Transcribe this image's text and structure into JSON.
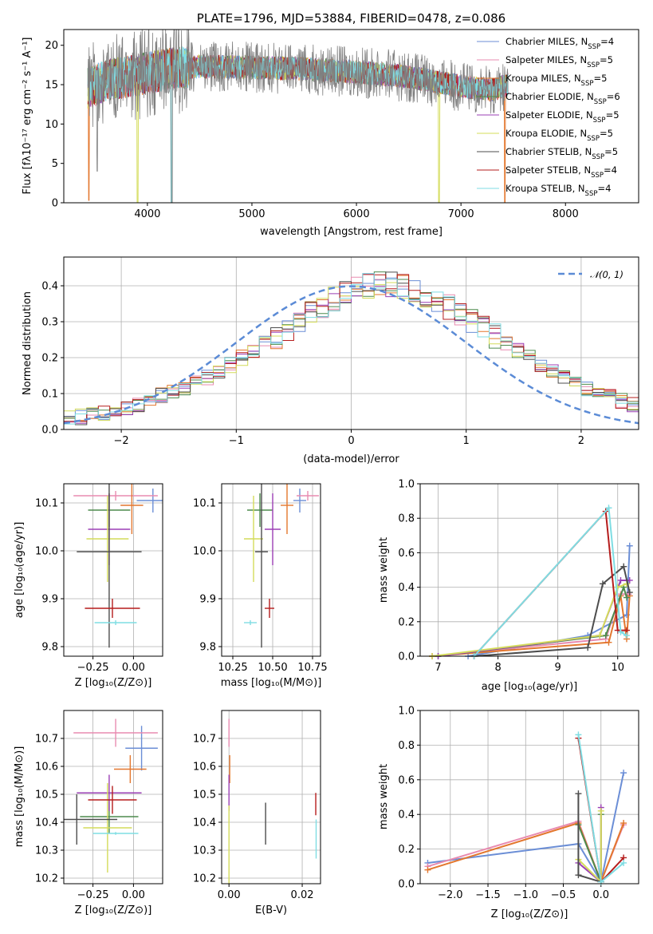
{
  "colors": {
    "Chabrier MILES": "#6b8ed6",
    "Salpeter MILES": "#e88bb0",
    "Kroupa MILES": "#e3772e",
    "Chabrier ELODIE": "#4d8a4d",
    "Salpeter ELODIE": "#9b3fb5",
    "Kroupa ELODIE": "#d4dc5a",
    "Chabrier STELIB": "#4d4d4d",
    "Salpeter STELIB": "#b51c1c",
    "Kroupa STELIB": "#7fdde3",
    "normal_curve": "#5b8bd6",
    "grid": "#b0b0b0"
  },
  "chart_data": [
    {
      "id": "spectrum",
      "type": "line",
      "title": "PLATE=1796, MJD=53884, FIBERID=0478, z=0.086",
      "xlabel": "wavelength [Angstrom, rest frame]",
      "ylabel": "Flux [fλ10⁻¹⁷ erg cm⁻² s⁻¹ A⁻¹]",
      "xlim": [
        3200,
        8700
      ],
      "ylim": [
        0,
        22
      ],
      "xticks": [
        "4000",
        "5000",
        "6000",
        "7000",
        "8000"
      ],
      "yticks": [
        "0",
        "5",
        "10",
        "15",
        "20"
      ],
      "grid": false,
      "legend_position": "upper right",
      "data_note": "observed spectrum (grey) overplotted with nine model fits",
      "legend": [
        {
          "label": "Chabrier MILES, N",
          "sub": "SSP",
          "tail": "=4"
        },
        {
          "label": "Salpeter MILES, N",
          "sub": "SSP",
          "tail": "=5"
        },
        {
          "label": "Kroupa MILES, N",
          "sub": "SSP",
          "tail": "=5"
        },
        {
          "label": "Chabrier ELODIE, N",
          "sub": "SSP",
          "tail": "=6"
        },
        {
          "label": "Salpeter ELODIE, N",
          "sub": "SSP",
          "tail": "=5"
        },
        {
          "label": "Kroupa ELODIE, N",
          "sub": "SSP",
          "tail": "=5"
        },
        {
          "label": "Chabrier STELIB, N",
          "sub": "SSP",
          "tail": "=5"
        },
        {
          "label": "Salpeter STELIB, N",
          "sub": "SSP",
          "tail": "=4"
        },
        {
          "label": "Kroupa STELIB, N",
          "sub": "SSP",
          "tail": "=4"
        }
      ],
      "continuum": {
        "x": [
          3430,
          3600,
          3800,
          4000,
          4200,
          4500,
          5000,
          5500,
          6000,
          6500,
          7000,
          7300,
          7450
        ],
        "y": [
          14.5,
          15.5,
          16.0,
          16.5,
          17.0,
          17.3,
          17.2,
          17.0,
          16.6,
          16.0,
          14.8,
          14.3,
          15.0
        ]
      }
    },
    {
      "id": "residuals",
      "type": "step",
      "xlabel": "(data-model)/error",
      "ylabel": "Normed distribution",
      "xlim": [
        -2.5,
        2.5
      ],
      "ylim": [
        0,
        0.48
      ],
      "xticks": [
        "−2",
        "−1",
        "0",
        "1",
        "2"
      ],
      "yticks": [
        "0.0",
        "0.1",
        "0.2",
        "0.3",
        "0.4"
      ],
      "grid": true,
      "legend_position": "upper right",
      "curve_label": "𝒩(0, 1)",
      "bins": {
        "start": -2.5,
        "width": 0.1
      },
      "base_values": [
        0.03,
        0.035,
        0.04,
        0.045,
        0.05,
        0.06,
        0.07,
        0.085,
        0.095,
        0.105,
        0.115,
        0.13,
        0.145,
        0.165,
        0.18,
        0.2,
        0.22,
        0.24,
        0.26,
        0.28,
        0.3,
        0.325,
        0.345,
        0.365,
        0.385,
        0.39,
        0.4,
        0.405,
        0.405,
        0.4,
        0.39,
        0.375,
        0.36,
        0.34,
        0.32,
        0.3,
        0.28,
        0.26,
        0.24,
        0.22,
        0.2,
        0.18,
        0.16,
        0.145,
        0.13,
        0.115,
        0.1,
        0.09,
        0.08,
        0.07,
        0.06
      ]
    },
    {
      "id": "age-vs-Z",
      "type": "errorbar",
      "xlabel": "Z [log₁₀(Z/Z⊙)]",
      "ylabel": "age  [log₁₀(age/yr)]",
      "xlim": [
        -0.43,
        0.18
      ],
      "ylim": [
        9.78,
        10.14
      ],
      "xticks": [
        {
          "v": -0.25,
          "t": "−0.25"
        },
        {
          "v": 0.0,
          "t": "0.00"
        }
      ],
      "yticks": [
        {
          "v": 9.8,
          "t": "9.8"
        },
        {
          "v": 9.9,
          "t": "9.9"
        },
        {
          "v": 10.0,
          "t": "10.0"
        },
        {
          "v": 10.1,
          "t": "10.1"
        }
      ],
      "points": [
        {
          "s": "Chabrier MILES",
          "x": 0.12,
          "y": 10.105,
          "xerr": 0.1,
          "yerr": 0.025
        },
        {
          "s": "Salpeter MILES",
          "x": -0.11,
          "y": 10.115,
          "xerr": 0.26,
          "yerr": 0.01
        },
        {
          "s": "Kroupa MILES",
          "x": -0.01,
          "y": 10.095,
          "xerr": 0.07,
          "yerr": 0.06
        },
        {
          "s": "Chabrier ELODIE",
          "x": -0.15,
          "y": 10.085,
          "xerr": 0.13,
          "yerr": 0.035
        },
        {
          "s": "Salpeter ELODIE",
          "x": -0.15,
          "y": 10.045,
          "xerr": 0.13,
          "yerr": 0.075
        },
        {
          "s": "Kroupa ELODIE",
          "x": -0.16,
          "y": 10.025,
          "xerr": 0.13,
          "yerr": 0.09
        },
        {
          "s": "Chabrier STELIB",
          "x": -0.15,
          "y": 9.998,
          "xerr": 0.2,
          "yerr": 0.2
        },
        {
          "s": "Salpeter STELIB",
          "x": -0.13,
          "y": 9.88,
          "xerr": 0.17,
          "yerr": 0.02
        },
        {
          "s": "Kroupa STELIB",
          "x": -0.11,
          "y": 9.85,
          "xerr": 0.13,
          "yerr": 0.005
        }
      ]
    },
    {
      "id": "age-vs-mass",
      "type": "errorbar",
      "xlabel": "mass [log₁₀(M/M⊙)]",
      "ylabel": "",
      "xlim": [
        10.18,
        10.8
      ],
      "ylim": [
        9.78,
        10.14
      ],
      "xticks": [
        {
          "v": 10.25,
          "t": "10.25"
        },
        {
          "v": 10.5,
          "t": "10.50"
        },
        {
          "v": 10.75,
          "t": "10.75"
        }
      ],
      "yticks": [
        {
          "v": 9.8,
          "t": "9.8"
        },
        {
          "v": 9.9,
          "t": "9.9"
        },
        {
          "v": 10.0,
          "t": "10.0"
        },
        {
          "v": 10.1,
          "t": "10.1"
        }
      ],
      "points": [
        {
          "s": "Chabrier MILES",
          "x": 10.67,
          "y": 10.105,
          "xerr": 0.04,
          "yerr": 0.025
        },
        {
          "s": "Salpeter MILES",
          "x": 10.72,
          "y": 10.115,
          "xerr": 0.07,
          "yerr": 0.01
        },
        {
          "s": "Kroupa MILES",
          "x": 10.59,
          "y": 10.095,
          "xerr": 0.04,
          "yerr": 0.06
        },
        {
          "s": "Chabrier ELODIE",
          "x": 10.42,
          "y": 10.085,
          "xerr": 0.08,
          "yerr": 0.035
        },
        {
          "s": "Salpeter ELODIE",
          "x": 10.5,
          "y": 10.045,
          "xerr": 0.05,
          "yerr": 0.075
        },
        {
          "s": "Kroupa ELODIE",
          "x": 10.38,
          "y": 10.025,
          "xerr": 0.06,
          "yerr": 0.09
        },
        {
          "s": "Chabrier STELIB",
          "x": 10.43,
          "y": 9.998,
          "xerr": 0.04,
          "yerr": 0.2
        },
        {
          "s": "Salpeter STELIB",
          "x": 10.48,
          "y": 9.88,
          "xerr": 0.03,
          "yerr": 0.02
        },
        {
          "s": "Kroupa STELIB",
          "x": 10.36,
          "y": 9.85,
          "xerr": 0.04,
          "yerr": 0.005
        }
      ]
    },
    {
      "id": "weight-vs-age",
      "type": "line",
      "xlabel": "age  [log₁₀(age/yr)]",
      "ylabel": "mass weight",
      "xlim": [
        6.7,
        10.35
      ],
      "ylim": [
        0,
        1.0
      ],
      "xticks": [
        {
          "v": 7,
          "t": "7"
        },
        {
          "v": 8,
          "t": "8"
        },
        {
          "v": 9,
          "t": "9"
        },
        {
          "v": 10,
          "t": "10"
        }
      ],
      "yticks": [
        {
          "v": 0,
          "t": "0.0"
        },
        {
          "v": 0.2,
          "t": "0.2"
        },
        {
          "v": 0.4,
          "t": "0.4"
        },
        {
          "v": 0.6,
          "t": "0.6"
        },
        {
          "v": 0.8,
          "t": "0.8"
        },
        {
          "v": 1.0,
          "t": "1.0"
        }
      ],
      "grid": true,
      "series": [
        {
          "s": "Chabrier MILES",
          "x": [
            7.5,
            9.5,
            10.15,
            10.2
          ],
          "y": [
            0.0,
            0.12,
            0.24,
            0.64
          ]
        },
        {
          "s": "Salpeter MILES",
          "x": [
            6.9,
            9.8,
            10.05,
            10.18
          ],
          "y": [
            0.0,
            0.1,
            0.36,
            0.36
          ]
        },
        {
          "s": "Kroupa MILES",
          "x": [
            6.9,
            9.85,
            10.05,
            10.15,
            10.2
          ],
          "y": [
            0.0,
            0.08,
            0.35,
            0.1,
            0.35
          ]
        },
        {
          "s": "Chabrier ELODIE",
          "x": [
            7.0,
            9.8,
            10.1,
            10.15
          ],
          "y": [
            0.0,
            0.12,
            0.4,
            0.34
          ]
        },
        {
          "s": "Salpeter ELODIE",
          "x": [
            7.0,
            9.7,
            10.05,
            10.2
          ],
          "y": [
            0.0,
            0.12,
            0.44,
            0.44
          ]
        },
        {
          "s": "Kroupa ELODIE",
          "x": [
            6.9,
            9.7,
            10.0,
            10.15
          ],
          "y": [
            0.0,
            0.12,
            0.4,
            0.42
          ]
        },
        {
          "s": "Chabrier STELIB",
          "x": [
            7.6,
            9.5,
            9.75,
            10.1,
            10.2
          ],
          "y": [
            0.0,
            0.05,
            0.42,
            0.52,
            0.37
          ]
        },
        {
          "s": "Salpeter STELIB",
          "x": [
            7.6,
            9.8,
            10.0,
            10.15
          ],
          "y": [
            0.0,
            0.84,
            0.15,
            0.15
          ]
        },
        {
          "s": "Kroupa STELIB",
          "x": [
            7.6,
            9.85,
            10.05,
            10.15
          ],
          "y": [
            0.0,
            0.86,
            0.14,
            0.12
          ]
        }
      ]
    },
    {
      "id": "mass-vs-Z",
      "type": "errorbar",
      "xlabel": "Z [log₁₀(Z/Z⊙)]",
      "ylabel": "mass [log₁₀(M/M⊙)]",
      "xlim": [
        -0.43,
        0.18
      ],
      "ylim": [
        10.18,
        10.8
      ],
      "xticks": [
        {
          "v": -0.25,
          "t": "−0.25"
        },
        {
          "v": 0.0,
          "t": "0.00"
        }
      ],
      "yticks": [
        {
          "v": 10.2,
          "t": "10.2"
        },
        {
          "v": 10.3,
          "t": "10.3"
        },
        {
          "v": 10.4,
          "t": "10.4"
        },
        {
          "v": 10.5,
          "t": "10.5"
        },
        {
          "v": 10.6,
          "t": "10.6"
        },
        {
          "v": 10.7,
          "t": "10.7"
        }
      ],
      "points": [
        {
          "s": "Chabrier MILES",
          "x": 0.05,
          "y": 10.665,
          "xerr": 0.1,
          "yerr": 0.08
        },
        {
          "s": "Salpeter MILES",
          "x": -0.11,
          "y": 10.72,
          "xerr": 0.26,
          "yerr": 0.05
        },
        {
          "s": "Kroupa MILES",
          "x": -0.02,
          "y": 10.59,
          "xerr": 0.1,
          "yerr": 0.05
        },
        {
          "s": "Chabrier ELODIE",
          "x": -0.15,
          "y": 10.42,
          "xerr": 0.18,
          "yerr": 0.06
        },
        {
          "s": "Salpeter ELODIE",
          "x": -0.15,
          "y": 10.505,
          "xerr": 0.2,
          "yerr": 0.065
        },
        {
          "s": "Kroupa ELODIE",
          "x": -0.16,
          "y": 10.38,
          "xerr": 0.15,
          "yerr": 0.16
        },
        {
          "s": "Chabrier STELIB",
          "x": -0.35,
          "y": 10.41,
          "xerr": 0.25,
          "yerr": 0.09
        },
        {
          "s": "Salpeter STELIB",
          "x": -0.13,
          "y": 10.48,
          "xerr": 0.15,
          "yerr": 0.05
        },
        {
          "s": "Kroupa STELIB",
          "x": -0.11,
          "y": 10.36,
          "xerr": 0.14,
          "yerr": 0.005
        }
      ]
    },
    {
      "id": "mass-vs-EBV",
      "type": "errorbar",
      "xlabel": "E(B-V)",
      "ylabel": "",
      "xlim": [
        -0.002,
        0.025
      ],
      "ylim": [
        10.18,
        10.8
      ],
      "xticks": [
        {
          "v": 0.0,
          "t": "0.00"
        },
        {
          "v": 0.02,
          "t": "0.02"
        }
      ],
      "yticks": [
        {
          "v": 10.2,
          "t": "10.2"
        },
        {
          "v": 10.3,
          "t": "10.3"
        },
        {
          "v": 10.4,
          "t": "10.4"
        },
        {
          "v": 10.5,
          "t": "10.5"
        },
        {
          "v": 10.6,
          "t": "10.6"
        },
        {
          "v": 10.7,
          "t": "10.7"
        }
      ],
      "points": [
        {
          "s": "Salpeter MILES",
          "x": 0.0,
          "y": 10.72,
          "xerr": 0,
          "yerr": 0.05
        },
        {
          "s": "Kroupa MILES",
          "x": 0.0002,
          "y": 10.59,
          "xerr": 0,
          "yerr": 0.05
        },
        {
          "s": "Salpeter ELODIE",
          "x": 0.0,
          "y": 10.505,
          "xerr": 0,
          "yerr": 0.065
        },
        {
          "s": "Kroupa ELODIE",
          "x": 0.0,
          "y": 10.3,
          "xerr": 0,
          "yerr": 0.16
        },
        {
          "s": "Chabrier STELIB",
          "x": 0.01,
          "y": 10.395,
          "xerr": 0,
          "yerr": 0.075
        },
        {
          "s": "Salpeter STELIB",
          "x": 0.0237,
          "y": 10.465,
          "xerr": 0,
          "yerr": 0.04
        },
        {
          "s": "Kroupa STELIB",
          "x": 0.0238,
          "y": 10.34,
          "xerr": 0,
          "yerr": 0.07
        }
      ]
    },
    {
      "id": "weight-vs-Z",
      "type": "line",
      "xlabel": "Z [log₁₀(Z/Z⊙)]",
      "ylabel": "mass weight",
      "xlim": [
        -2.4,
        0.5
      ],
      "ylim": [
        0,
        1.0
      ],
      "xticks": [
        {
          "v": -2.0,
          "t": "−2.0"
        },
        {
          "v": -1.5,
          "t": "−1.5"
        },
        {
          "v": -1.0,
          "t": "−1.0"
        },
        {
          "v": -0.5,
          "t": "−0.5"
        },
        {
          "v": 0.0,
          "t": "0.0"
        }
      ],
      "yticks": [
        {
          "v": 0,
          "t": "0.0"
        },
        {
          "v": 0.2,
          "t": "0.2"
        },
        {
          "v": 0.4,
          "t": "0.4"
        },
        {
          "v": 0.6,
          "t": "0.6"
        },
        {
          "v": 0.8,
          "t": "0.8"
        },
        {
          "v": 1.0,
          "t": "1.0"
        }
      ],
      "grid": true,
      "series": [
        {
          "s": "Chabrier MILES",
          "x": [
            -2.3,
            -0.3,
            0.0,
            0.3
          ],
          "y": [
            0.12,
            0.23,
            0.01,
            0.64
          ]
        },
        {
          "s": "Salpeter MILES",
          "x": [
            -2.3,
            -0.3,
            0.0,
            0.3
          ],
          "y": [
            0.1,
            0.36,
            0.01,
            0.34
          ]
        },
        {
          "s": "Kroupa MILES",
          "x": [
            -2.3,
            -0.3,
            0.0,
            0.3
          ],
          "y": [
            0.08,
            0.35,
            0.01,
            0.35
          ]
        },
        {
          "s": "Chabrier ELODIE",
          "x": [
            -0.3,
            0.0,
            0.0
          ],
          "y": [
            0.34,
            0.01,
            0.4
          ]
        },
        {
          "s": "Salpeter ELODIE",
          "x": [
            -0.3,
            0.0,
            0.0
          ],
          "y": [
            0.12,
            0.01,
            0.44
          ]
        },
        {
          "s": "Kroupa ELODIE",
          "x": [
            -0.3,
            0.0,
            0.0
          ],
          "y": [
            0.14,
            0.01,
            0.42
          ]
        },
        {
          "s": "Chabrier STELIB",
          "x": [
            -0.3,
            -0.3,
            0.0
          ],
          "y": [
            0.52,
            0.05,
            0.01
          ]
        },
        {
          "s": "Salpeter STELIB",
          "x": [
            -0.3,
            0.0,
            0.3
          ],
          "y": [
            0.84,
            0.01,
            0.15
          ]
        },
        {
          "s": "Kroupa STELIB",
          "x": [
            -0.3,
            0.0,
            0.3
          ],
          "y": [
            0.86,
            0.01,
            0.12
          ]
        }
      ]
    }
  ]
}
